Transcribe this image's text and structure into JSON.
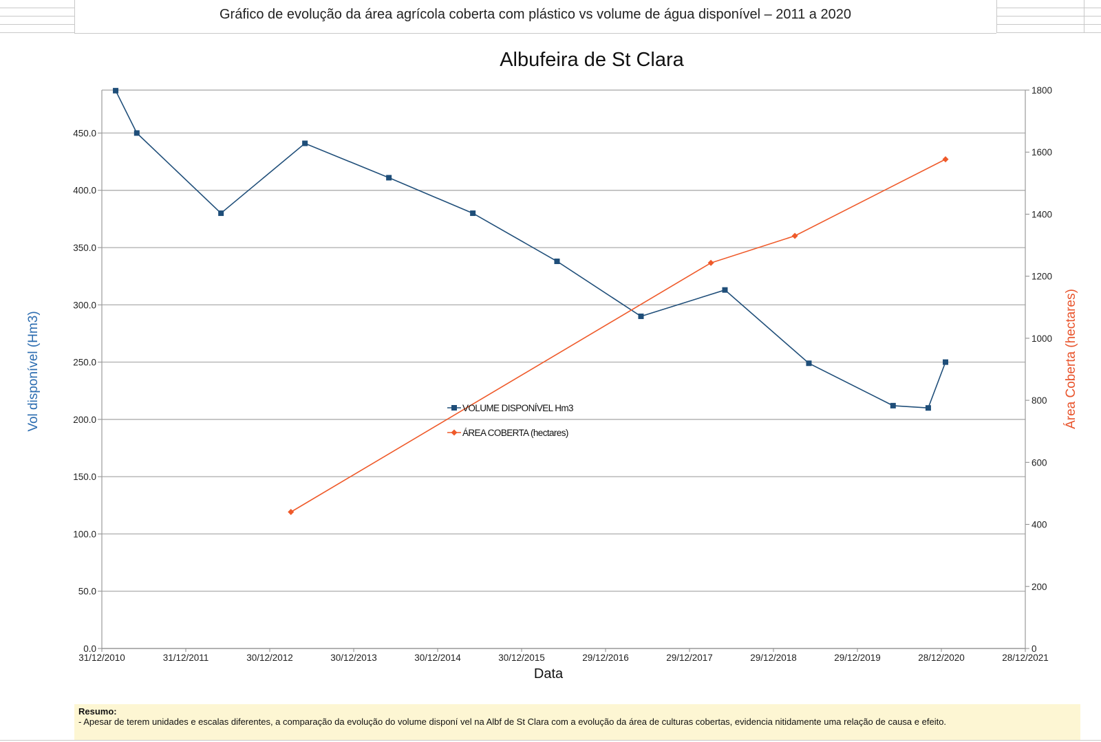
{
  "header": {
    "title": "Gráfico de evolução da área agrícola coberta com plástico vs volume de água disponível – 2011 a 2020"
  },
  "summary": {
    "title": "Resumo:",
    "text": "- Apesar de terem unidades e escalas diferentes, a comparação da evolução do volume disponí vel na Albf de St Clara com a evolução da área de culturas cobertas, evidencia nitidamente uma relação de causa e  efeito."
  },
  "colors": {
    "volume": "#1f4e79",
    "area": "#ef5a2a",
    "grid": "#b3b3b3",
    "ylabel_left": "#2b6cb0",
    "ylabel_right": "#e8532b"
  },
  "chart_data": {
    "type": "line",
    "title": "Albufeira de St Clara",
    "xlabel": "Data",
    "ylabel": "Vol disponível (Hm3)",
    "y2label": "Área Coberta (hectares)",
    "x_ticks": [
      "31/12/2010",
      "31/12/2011",
      "30/12/2012",
      "30/12/2013",
      "30/12/2014",
      "30/12/2015",
      "29/12/2016",
      "29/12/2017",
      "29/12/2018",
      "29/12/2019",
      "28/12/2020",
      "28/12/2021"
    ],
    "x_range": [
      "2010-12-31",
      "2021-12-28"
    ],
    "ylim": [
      0,
      487.5
    ],
    "y_ticks": [
      "0.0",
      "50.0",
      "100.0",
      "150.0",
      "200.0",
      "250.0",
      "300.0",
      "350.0",
      "400.0",
      "450.0"
    ],
    "y2lim": [
      0,
      1800
    ],
    "y2_ticks": [
      "0",
      "200",
      "400",
      "600",
      "800",
      "1000",
      "1200",
      "1400",
      "1600",
      "1800"
    ],
    "grid": true,
    "legend_position": "center",
    "series": [
      {
        "name": "VOLUME DISPONÍVEL Hm3",
        "axis": "left",
        "marker": "square",
        "points": [
          {
            "x": "2011-03-01",
            "y": 487
          },
          {
            "x": "2011-06-01",
            "y": 450
          },
          {
            "x": "2012-06-01",
            "y": 380
          },
          {
            "x": "2013-06-01",
            "y": 441
          },
          {
            "x": "2014-06-01",
            "y": 411
          },
          {
            "x": "2015-06-01",
            "y": 380
          },
          {
            "x": "2016-06-01",
            "y": 338
          },
          {
            "x": "2017-06-01",
            "y": 290
          },
          {
            "x": "2018-06-01",
            "y": 313
          },
          {
            "x": "2019-06-01",
            "y": 249
          },
          {
            "x": "2020-06-01",
            "y": 212
          },
          {
            "x": "2020-11-01",
            "y": 210
          },
          {
            "x": "2021-01-15",
            "y": 250
          }
        ]
      },
      {
        "name": "ÁREA COBERTA (hectares)",
        "axis": "right",
        "marker": "diamond",
        "points": [
          {
            "x": "2013-04-01",
            "y": 440
          },
          {
            "x": "2018-04-01",
            "y": 1243
          },
          {
            "x": "2019-04-01",
            "y": 1330
          },
          {
            "x": "2021-01-15",
            "y": 1577
          }
        ]
      }
    ]
  }
}
